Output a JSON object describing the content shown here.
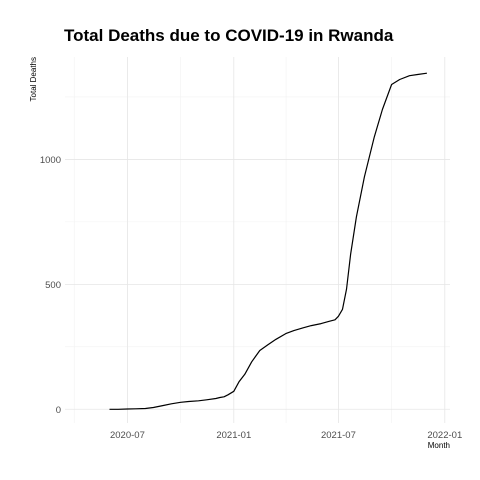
{
  "chart_data": {
    "type": "line",
    "title": "Total Deaths due to COVID-19 in Rwanda",
    "xlabel": "Month",
    "ylabel": "Total Deaths",
    "x_ticks": [
      "2020-07",
      "2021-01",
      "2021-07",
      "2022-01"
    ],
    "y_ticks": [
      0,
      500,
      1000
    ],
    "xlim": [
      "2020-03-15",
      "2022-01-10"
    ],
    "ylim": [
      -55,
      1410
    ],
    "grid": true,
    "line_color": "#000000",
    "series": [
      {
        "x": [
          "2020-05-31",
          "2020-06-15",
          "2020-07-01",
          "2020-07-15",
          "2020-08-01",
          "2020-08-15",
          "2020-09-01",
          "2020-09-15",
          "2020-10-01",
          "2020-10-15",
          "2020-11-01",
          "2020-11-15",
          "2020-12-01",
          "2020-12-08",
          "2020-12-15",
          "2020-12-22",
          "2021-01-01",
          "2021-01-10",
          "2021-01-20",
          "2021-02-01",
          "2021-02-15",
          "2021-03-01",
          "2021-03-15",
          "2021-04-01",
          "2021-04-15",
          "2021-05-01",
          "2021-05-15",
          "2021-06-01",
          "2021-06-15",
          "2021-06-25",
          "2021-07-01",
          "2021-07-08",
          "2021-07-15",
          "2021-07-22",
          "2021-08-01",
          "2021-08-15",
          "2021-09-01",
          "2021-09-15",
          "2021-10-01",
          "2021-10-15",
          "2021-11-01",
          "2021-11-15",
          "2021-12-01"
        ],
        "y": [
          0,
          0,
          1,
          2,
          3,
          7,
          15,
          22,
          28,
          31,
          34,
          38,
          43,
          47,
          50,
          58,
          72,
          110,
          140,
          190,
          235,
          258,
          280,
          303,
          315,
          326,
          335,
          343,
          352,
          358,
          372,
          400,
          480,
          620,
          770,
          930,
          1090,
          1200,
          1300,
          1320,
          1335,
          1340,
          1345
        ]
      }
    ]
  }
}
